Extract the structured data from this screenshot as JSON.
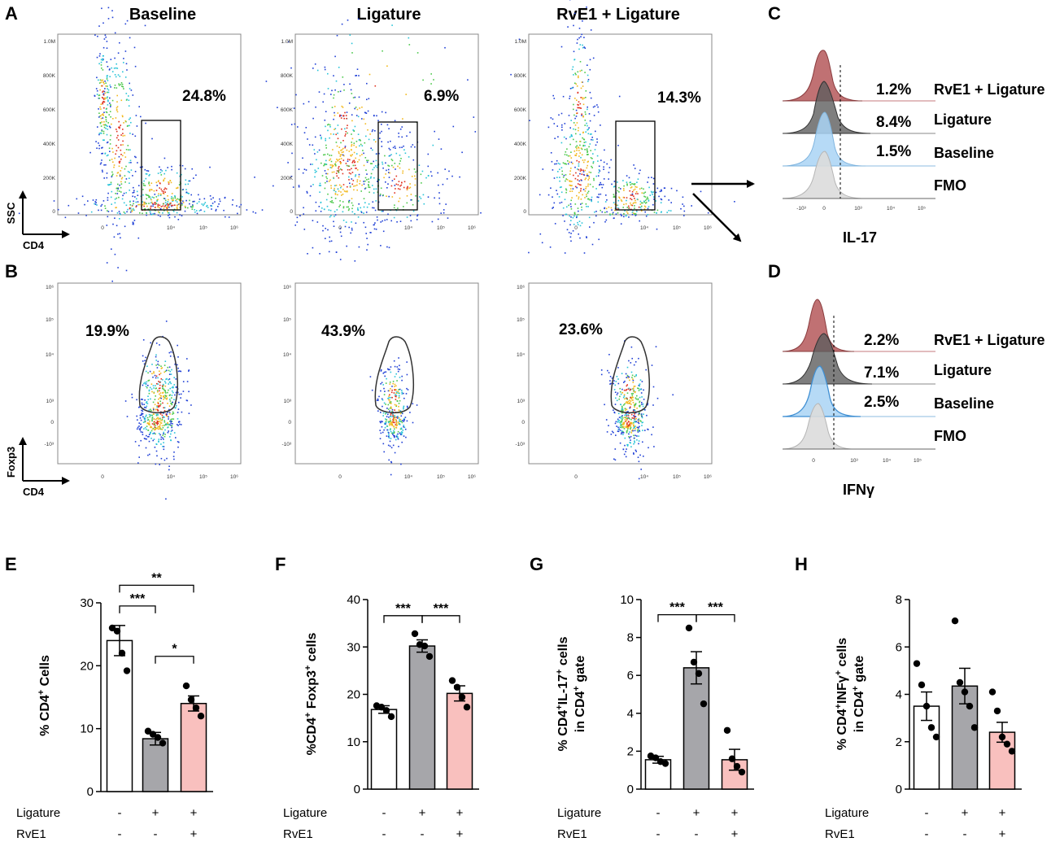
{
  "panels": {
    "A": "A",
    "B": "B",
    "C": "C",
    "D": "D",
    "E": "E",
    "F": "F",
    "G": "G",
    "H": "H"
  },
  "conditions": [
    "Baseline",
    "Ligature",
    "RvE1 + Ligature"
  ],
  "flow_a": {
    "percents": [
      "24.8%",
      "6.9%",
      "14.3%"
    ],
    "y_axis": "SSC",
    "x_axis": "CD4",
    "y_ticks": [
      "1.0M",
      "800K",
      "600K",
      "400K",
      "200K",
      "0"
    ],
    "x_ticks": [
      "0",
      "10⁴",
      "10⁵",
      "10⁶"
    ]
  },
  "flow_b": {
    "percents": [
      "19.9%",
      "43.9%",
      "23.6%"
    ],
    "y_axis": "Foxp3",
    "x_axis": "CD4",
    "y_ticks": [
      "10⁶",
      "10⁵",
      "10⁴",
      "10³",
      "0",
      "-10³"
    ],
    "x_ticks": [
      "0",
      "10⁴",
      "10⁵",
      "10⁶"
    ]
  },
  "hist_c": {
    "labels": [
      "RvE1 + Ligature",
      "Ligature",
      "Baseline",
      "FMO"
    ],
    "percents": [
      "1.2%",
      "8.4%",
      "1.5%"
    ],
    "x_axis": "IL-17",
    "x_ticks": [
      "-10³",
      "0",
      "10³",
      "10⁴",
      "10⁵"
    ]
  },
  "hist_d": {
    "labels": [
      "RvE1 + Ligature",
      "Ligature",
      "Baseline",
      "FMO"
    ],
    "percents": [
      "2.2%",
      "7.1%",
      "2.5%"
    ],
    "x_axis": "IFNγ",
    "x_ticks": [
      "0",
      "10³",
      "10⁴",
      "10⁵"
    ]
  },
  "treatment": {
    "row1_label": "Ligature",
    "row2_label": "RvE1",
    "row1": [
      "-",
      "+",
      "+"
    ],
    "row2": [
      "-",
      "-",
      "+"
    ]
  },
  "colors": {
    "baseline_bar": "#ffffff",
    "ligature_bar": "#a6a6aa",
    "rve1_bar": "#f9c0be",
    "hist_rve1": "#b5585a",
    "hist_ligature": "#5e5e5e",
    "hist_baseline": "#a9d3f4",
    "hist_fmo": "#dcdcdc"
  },
  "chart_data": [
    {
      "type": "bar",
      "panel": "E",
      "title": "",
      "xlabel": "",
      "ylabel": "% CD4+ Cells",
      "ylim": [
        0,
        30
      ],
      "yticks": [
        0,
        10,
        20,
        30
      ],
      "categories": [
        "Baseline",
        "Ligature",
        "RvE1 + Ligature"
      ],
      "values": [
        24.0,
        8.4,
        14.0
      ],
      "errors": [
        2.4,
        1.0,
        1.2
      ],
      "points": [
        [
          26.0,
          25.5,
          22.0,
          19.2
        ],
        [
          9.6,
          9.1,
          8.6,
          7.7
        ],
        [
          16.8,
          14.6,
          13.3,
          12.0
        ]
      ],
      "significance": [
        {
          "pair": [
            0,
            2
          ],
          "label": "**",
          "y": 32.8
        },
        {
          "pair": [
            0,
            1
          ],
          "label": "***",
          "y": 29.5
        },
        {
          "pair": [
            1,
            2
          ],
          "label": "*",
          "y": 21.5
        }
      ]
    },
    {
      "type": "bar",
      "panel": "F",
      "title": "",
      "xlabel": "",
      "ylabel": "%CD4+ Foxp3+ cells",
      "ylim": [
        0,
        40
      ],
      "yticks": [
        0,
        10,
        20,
        30,
        40
      ],
      "categories": [
        "Baseline",
        "Ligature",
        "RvE1 + Ligature"
      ],
      "values": [
        16.8,
        30.2,
        20.2
      ],
      "errors": [
        0.8,
        1.3,
        1.6
      ],
      "points": [
        [
          17.6,
          17.3,
          16.6,
          15.3
        ],
        [
          32.8,
          30.5,
          30.2,
          28.0
        ],
        [
          22.9,
          21.5,
          19.4,
          17.3
        ]
      ],
      "significance": [
        {
          "pair": [
            0,
            1
          ],
          "label": "***",
          "y": 36.6
        },
        {
          "pair": [
            1,
            2
          ],
          "label": "***",
          "y": 36.6
        }
      ]
    },
    {
      "type": "bar",
      "panel": "G",
      "title": "",
      "xlabel": "",
      "ylabel": "% CD4+IL-17+ cells in CD4+ gate",
      "ylim": [
        0,
        10
      ],
      "yticks": [
        0,
        2,
        4,
        6,
        8,
        10
      ],
      "categories": [
        "Baseline",
        "Ligature",
        "RvE1 + Ligature"
      ],
      "values": [
        1.55,
        6.4,
        1.55
      ],
      "errors": [
        0.18,
        0.85,
        0.55
      ],
      "points": [
        [
          1.75,
          1.65,
          1.45,
          1.35
        ],
        [
          8.5,
          6.7,
          6.1,
          4.5
        ],
        [
          3.1,
          1.6,
          1.2,
          0.9
        ]
      ],
      "significance": [
        {
          "pair": [
            0,
            1
          ],
          "label": "***",
          "y": 9.2
        },
        {
          "pair": [
            1,
            2
          ],
          "label": "***",
          "y": 9.2
        }
      ]
    },
    {
      "type": "bar",
      "panel": "H",
      "title": "",
      "xlabel": "",
      "ylabel": "% CD4+INFγ+ cells in CD4+ gate",
      "ylim": [
        0,
        8
      ],
      "yticks": [
        0,
        2,
        4,
        6,
        8
      ],
      "categories": [
        "Baseline",
        "Ligature",
        "RvE1 + Ligature"
      ],
      "values": [
        3.5,
        4.35,
        2.4
      ],
      "errors": [
        0.6,
        0.75,
        0.42
      ],
      "points": [
        [
          5.3,
          4.4,
          3.5,
          2.6,
          2.2
        ],
        [
          7.1,
          4.5,
          4.1,
          3.5,
          2.6
        ],
        [
          4.1,
          3.3,
          2.2,
          1.9,
          1.6
        ]
      ],
      "significance": []
    }
  ]
}
